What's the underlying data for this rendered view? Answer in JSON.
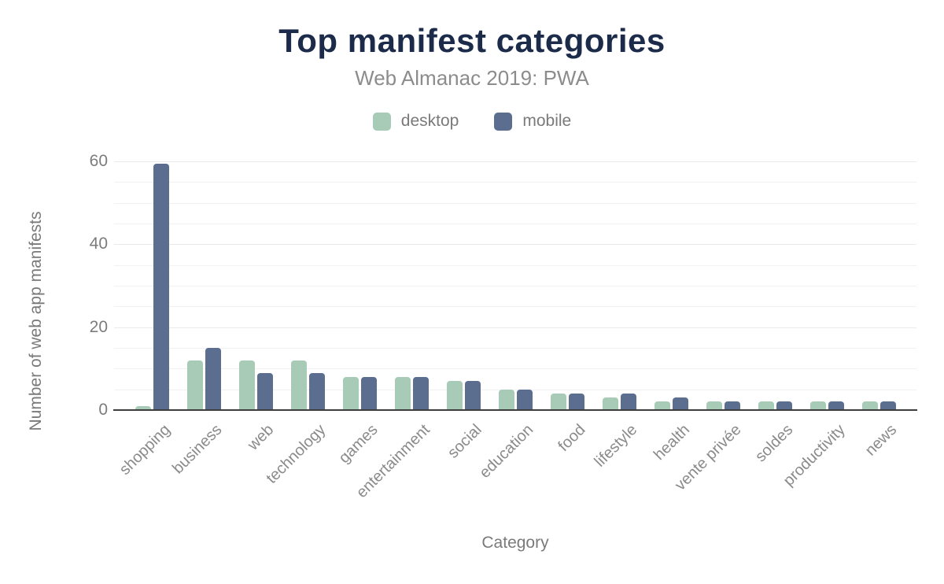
{
  "chart_data": {
    "type": "bar",
    "title": "Top manifest categories",
    "subtitle": "Web Almanac 2019: PWA",
    "categories": [
      "shopping",
      "business",
      "web",
      "technology",
      "games",
      "entertainment",
      "social",
      "education",
      "food",
      "lifestyle",
      "health",
      "vente privée",
      "soldes",
      "productivity",
      "news"
    ],
    "series": [
      {
        "name": "desktop",
        "color": "#a8cbb7",
        "values": [
          1,
          12,
          12,
          12,
          8,
          8,
          7,
          5,
          4,
          3,
          2,
          2,
          2,
          2,
          2
        ]
      },
      {
        "name": "mobile",
        "color": "#5b6e8f",
        "values": [
          59.5,
          15,
          9,
          9,
          8,
          8,
          7,
          5,
          4,
          4,
          3,
          2,
          2,
          2,
          2
        ]
      }
    ],
    "xlabel": "Category",
    "ylabel": "Number of web app manifests",
    "ylim": [
      0,
      60
    ],
    "yticks": [
      0,
      20,
      40,
      60
    ],
    "grid_step": 5,
    "grid": true,
    "legend_position": "top"
  },
  "colors": {
    "background": "#ffffff",
    "title": "#1b2b49",
    "subtitle": "#8c8c8c",
    "legend_text": "#7a7a7a",
    "tick_text": "#7c7c7c",
    "xtick_text": "#8a8a8a",
    "axis_title_text": "#7a7a7a",
    "gridline": "#f1f1f1",
    "gridline_major": "#eaeaea",
    "axis_line": "#3d3d3d"
  }
}
